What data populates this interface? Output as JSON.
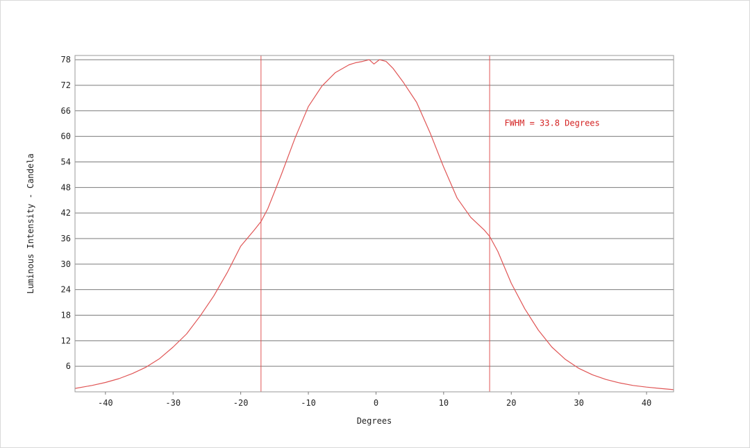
{
  "chart_data": {
    "type": "line",
    "title": "",
    "xlabel": "Degrees",
    "ylabel": "Luminous Intensity - Candela",
    "xlim": [
      -44.5,
      44
    ],
    "ylim": [
      0,
      79
    ],
    "x_ticks": [
      -40,
      -30,
      -20,
      -10,
      0,
      10,
      20,
      30,
      40
    ],
    "x_tick_labels": [
      "-40",
      "-30",
      "-20",
      "-10",
      "0",
      "10",
      "20",
      "30",
      "40"
    ],
    "y_ticks": [
      6,
      12,
      18,
      24,
      30,
      36,
      42,
      48,
      54,
      60,
      66,
      72,
      78
    ],
    "y_tick_labels": [
      "6",
      "12",
      "18",
      "24",
      "30",
      "36",
      "42",
      "48",
      "54",
      "60",
      "66",
      "72",
      "78"
    ],
    "grid": {
      "horizontal": true,
      "vertical": false
    },
    "legend": "none",
    "series": [
      {
        "color": "#e05555",
        "x": [
          -44.5,
          -42,
          -40,
          -38,
          -36,
          -34,
          -32,
          -30,
          -28,
          -26,
          -24,
          -22,
          -20,
          -18,
          -17,
          -16,
          -14,
          -12,
          -10,
          -8,
          -6,
          -4,
          -3,
          -2,
          -1,
          -0.3,
          0.5,
          1.5,
          2.5,
          4,
          6,
          8,
          10,
          12,
          14,
          16,
          16.8,
          18,
          20,
          22,
          24,
          26,
          28,
          30,
          32,
          34,
          36,
          38,
          40,
          42,
          44
        ],
        "y": [
          0.8,
          1.5,
          2.2,
          3.1,
          4.3,
          5.8,
          7.8,
          10.5,
          13.6,
          17.8,
          22.5,
          28.0,
          34.2,
          38.0,
          40.0,
          43.0,
          51.0,
          59.5,
          67.0,
          71.8,
          75.0,
          76.8,
          77.3,
          77.6,
          78.0,
          77.0,
          78.0,
          77.6,
          76.0,
          72.8,
          68.0,
          60.8,
          52.8,
          45.5,
          41.0,
          38.0,
          36.5,
          33.0,
          25.5,
          19.5,
          14.5,
          10.5,
          7.6,
          5.5,
          4.0,
          2.9,
          2.1,
          1.5,
          1.1,
          0.8,
          0.5
        ]
      }
    ],
    "markers": [
      {
        "x": -17.0,
        "color": "#e05555"
      },
      {
        "x": 16.8,
        "color": "#e05555"
      }
    ],
    "annotations": [
      {
        "text": "FWHM = 33.8 Degrees",
        "x": 19,
        "y": 62.5,
        "color": "#d42222"
      }
    ]
  }
}
